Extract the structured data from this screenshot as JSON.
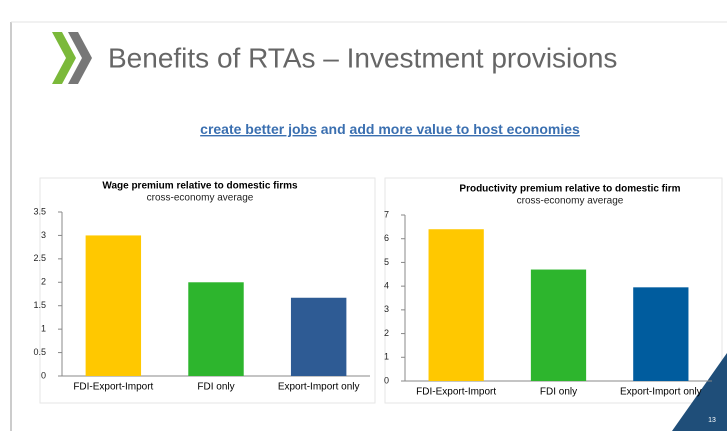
{
  "slide": {
    "title": "Benefits of RTAs – Investment provisions",
    "subtitle": {
      "link1": "create better jobs",
      "middle": "and",
      "link2": "add more value to host economies"
    },
    "page_number": "13"
  },
  "chart_data": [
    {
      "type": "bar",
      "title": "Wage premium relative to domestic firms",
      "subtitle": "cross-economy average",
      "categories": [
        "FDI-Export-Import",
        "FDI only",
        "Export-Import only"
      ],
      "values": [
        3.0,
        2.0,
        1.67
      ],
      "colors": [
        "#ffc800",
        "#2db52d",
        "#2e5b94"
      ],
      "ylim": [
        0,
        3.5
      ],
      "yticks": [
        0,
        0.5,
        1,
        1.5,
        2,
        2.5,
        3,
        3.5
      ],
      "grid": false
    },
    {
      "type": "bar",
      "title": "Productivity premium relative to domestic firm",
      "subtitle": "cross-economy average",
      "categories": [
        "FDI-Export-Import",
        "FDI only",
        "Export-Import only"
      ],
      "values": [
        6.4,
        4.7,
        3.95
      ],
      "colors": [
        "#ffc800",
        "#2db52d",
        "#005c9e"
      ],
      "ylim": [
        0,
        7
      ],
      "yticks": [
        0,
        1,
        2,
        3,
        4,
        5,
        6,
        7
      ],
      "grid": false
    }
  ]
}
